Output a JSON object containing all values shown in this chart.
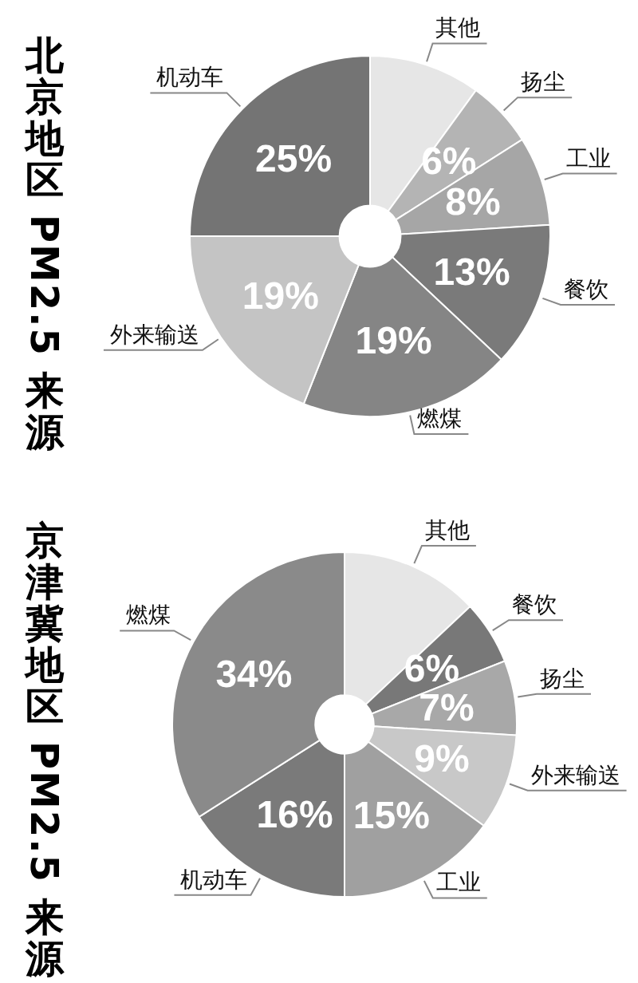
{
  "chart_data": [
    {
      "type": "donut",
      "title": "北京地区 PM2.5 来源",
      "categories": [
        "其他",
        "扬尘",
        "工业",
        "餐饮",
        "燃煤",
        "外来输送",
        "机动车"
      ],
      "values": [
        10,
        6,
        8,
        13,
        19,
        19,
        25
      ],
      "colors": [
        "#e6e6e6",
        "#b4b4b4",
        "#a6a6a6",
        "#7a7a7a",
        "#858585",
        "#c4c4c4",
        "#747474"
      ],
      "value_labels": [
        null,
        "6%",
        "8%",
        "13%",
        "19%",
        "19%",
        "25%"
      ]
    },
    {
      "type": "donut",
      "title": "京津冀地区 PM2.5 来源",
      "categories": [
        "其他",
        "餐饮",
        "扬尘",
        "外来输送",
        "工业",
        "机动车",
        "燃煤"
      ],
      "values": [
        13,
        6,
        7,
        9,
        15,
        16,
        34
      ],
      "colors": [
        "#e6e6e6",
        "#787878",
        "#a8a8a8",
        "#c8c8c8",
        "#a0a0a0",
        "#7a7a7a",
        "#8a8a8a"
      ],
      "value_labels": [
        null,
        "6%",
        "7%",
        "9%",
        "15%",
        "16%",
        "34%"
      ]
    }
  ]
}
